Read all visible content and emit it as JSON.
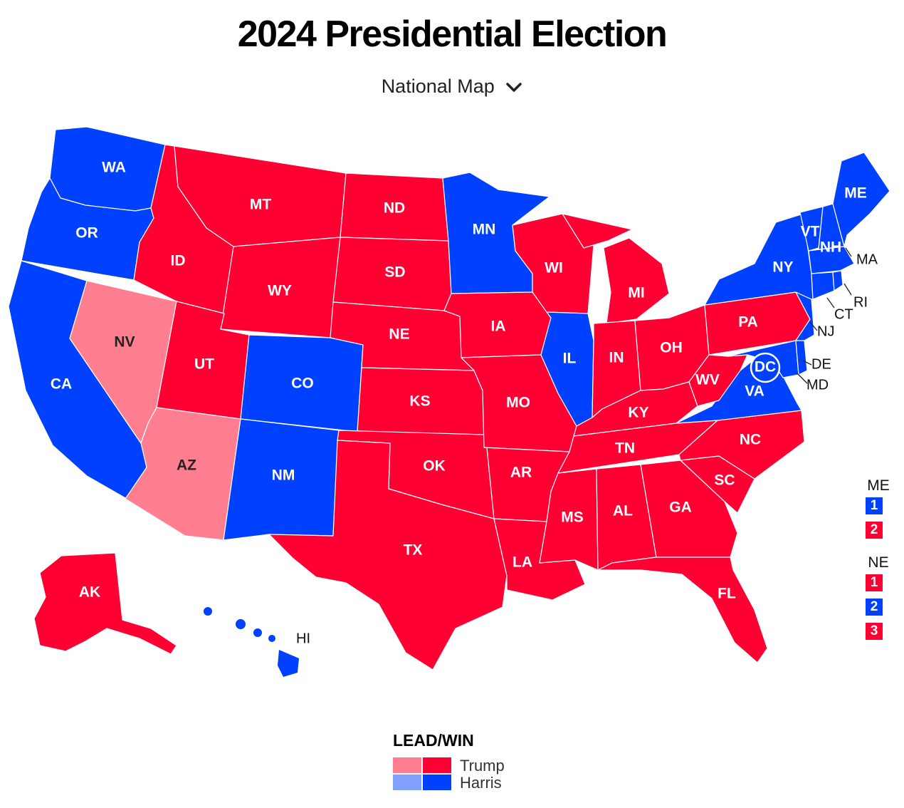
{
  "title": "2024 Presidential Election",
  "view_selector": {
    "label": "National Map",
    "icon": "chevron-down-icon"
  },
  "colors": {
    "trump_win": "#ff0033",
    "trump_lead": "#ff7f90",
    "harris_win": "#0040ff",
    "harris_lead": "#7fa0ff"
  },
  "states": [
    {
      "abbr": "WA",
      "status": "harris_win"
    },
    {
      "abbr": "OR",
      "status": "harris_win"
    },
    {
      "abbr": "CA",
      "status": "harris_win"
    },
    {
      "abbr": "NV",
      "status": "trump_lead"
    },
    {
      "abbr": "ID",
      "status": "trump_win"
    },
    {
      "abbr": "MT",
      "status": "trump_win"
    },
    {
      "abbr": "WY",
      "status": "trump_win"
    },
    {
      "abbr": "UT",
      "status": "trump_win"
    },
    {
      "abbr": "AZ",
      "status": "trump_lead"
    },
    {
      "abbr": "CO",
      "status": "harris_win"
    },
    {
      "abbr": "NM",
      "status": "harris_win"
    },
    {
      "abbr": "ND",
      "status": "trump_win"
    },
    {
      "abbr": "SD",
      "status": "trump_win"
    },
    {
      "abbr": "NE",
      "status": "trump_win"
    },
    {
      "abbr": "KS",
      "status": "trump_win"
    },
    {
      "abbr": "OK",
      "status": "trump_win"
    },
    {
      "abbr": "TX",
      "status": "trump_win"
    },
    {
      "abbr": "MN",
      "status": "harris_win"
    },
    {
      "abbr": "IA",
      "status": "trump_win"
    },
    {
      "abbr": "MO",
      "status": "trump_win"
    },
    {
      "abbr": "AR",
      "status": "trump_win"
    },
    {
      "abbr": "LA",
      "status": "trump_win"
    },
    {
      "abbr": "WI",
      "status": "trump_win"
    },
    {
      "abbr": "IL",
      "status": "harris_win"
    },
    {
      "abbr": "MI",
      "status": "trump_win"
    },
    {
      "abbr": "IN",
      "status": "trump_win"
    },
    {
      "abbr": "OH",
      "status": "trump_win"
    },
    {
      "abbr": "KY",
      "status": "trump_win"
    },
    {
      "abbr": "TN",
      "status": "trump_win"
    },
    {
      "abbr": "MS",
      "status": "trump_win"
    },
    {
      "abbr": "AL",
      "status": "trump_win"
    },
    {
      "abbr": "GA",
      "status": "trump_win"
    },
    {
      "abbr": "FL",
      "status": "trump_win"
    },
    {
      "abbr": "SC",
      "status": "trump_win"
    },
    {
      "abbr": "NC",
      "status": "trump_win"
    },
    {
      "abbr": "VA",
      "status": "harris_win"
    },
    {
      "abbr": "WV",
      "status": "trump_win"
    },
    {
      "abbr": "PA",
      "status": "trump_win"
    },
    {
      "abbr": "NY",
      "status": "harris_win"
    },
    {
      "abbr": "VT",
      "status": "harris_win"
    },
    {
      "abbr": "NH",
      "status": "harris_win"
    },
    {
      "abbr": "ME",
      "status": "harris_win"
    },
    {
      "abbr": "MA",
      "status": "harris_win"
    },
    {
      "abbr": "RI",
      "status": "harris_win"
    },
    {
      "abbr": "CT",
      "status": "harris_win"
    },
    {
      "abbr": "NJ",
      "status": "harris_win"
    },
    {
      "abbr": "DE",
      "status": "harris_win"
    },
    {
      "abbr": "MD",
      "status": "harris_win"
    },
    {
      "abbr": "DC",
      "status": "harris_win"
    },
    {
      "abbr": "AK",
      "status": "trump_win"
    },
    {
      "abbr": "HI",
      "status": "harris_win"
    }
  ],
  "congressional_districts": [
    {
      "state": "ME",
      "districts": [
        {
          "label": "1",
          "status": "harris_win"
        },
        {
          "label": "2",
          "status": "trump_win"
        }
      ]
    },
    {
      "state": "NE",
      "districts": [
        {
          "label": "1",
          "status": "trump_win"
        },
        {
          "label": "2",
          "status": "harris_win"
        },
        {
          "label": "3",
          "status": "trump_win"
        }
      ]
    }
  ],
  "legend": {
    "title": "LEAD/WIN",
    "items": [
      {
        "label": "Trump",
        "lead_color": "#ff7f90",
        "win_color": "#ff0033"
      },
      {
        "label": "Harris",
        "lead_color": "#7fa0ff",
        "win_color": "#0040ff"
      }
    ]
  }
}
